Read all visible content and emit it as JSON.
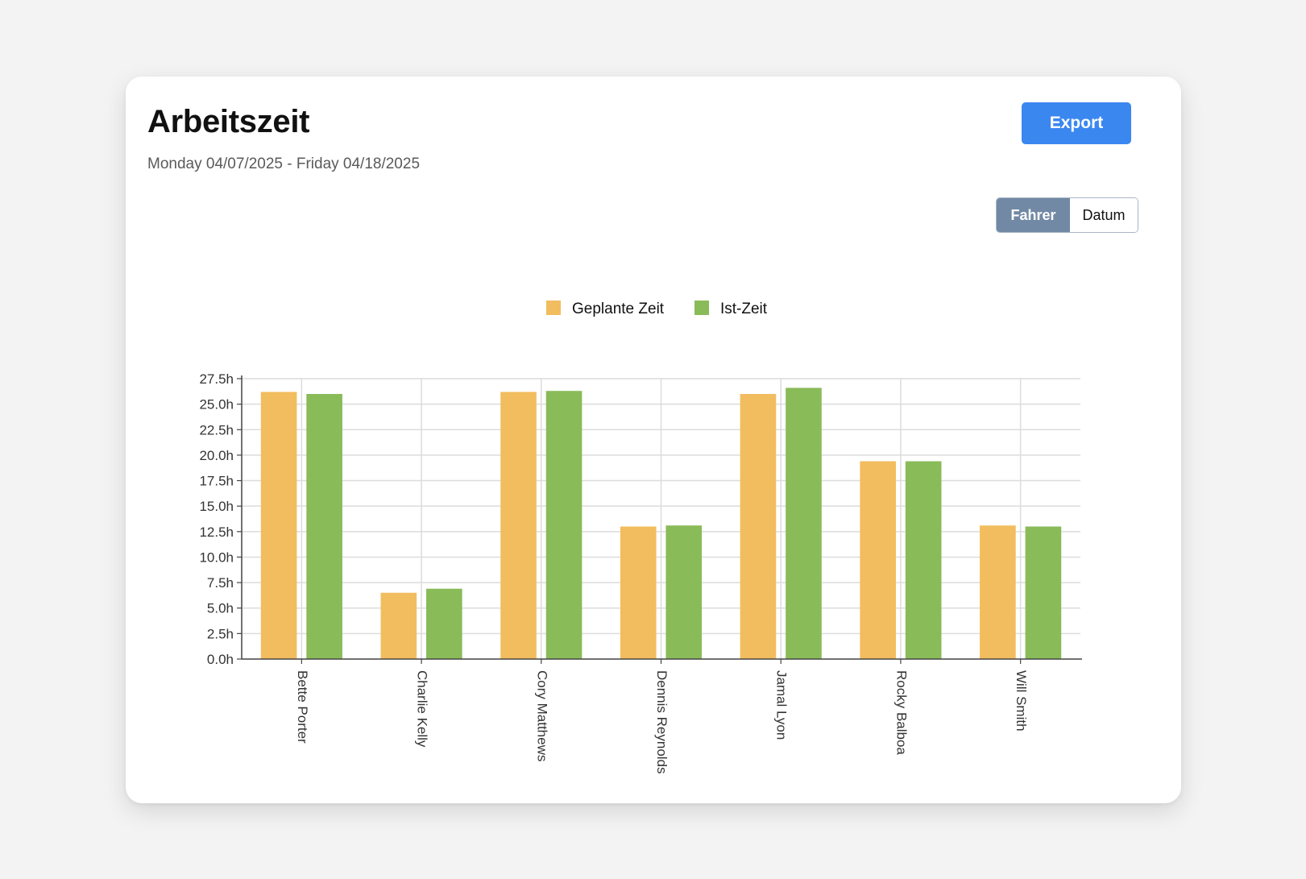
{
  "header": {
    "title": "Arbeitszeit",
    "date_range": "Monday 04/07/2025 - Friday 04/18/2025",
    "export_label": "Export"
  },
  "view_toggle": {
    "options": [
      "Fahrer",
      "Datum"
    ],
    "selected": "Fahrer"
  },
  "colors": {
    "planned": "#f2bd5e",
    "actual": "#89bb59",
    "accent": "#3b87f0",
    "toggle_active": "#7289a5"
  },
  "chart_data": {
    "type": "bar",
    "categories": [
      "Bette Porter",
      "Charlie Kelly",
      "Cory Matthews",
      "Dennis Reynolds",
      "Jamal Lyon",
      "Rocky Balboa",
      "Will Smith"
    ],
    "series": [
      {
        "name": "Geplante Zeit",
        "values": [
          26.2,
          6.5,
          26.2,
          13.0,
          26.0,
          19.4,
          13.1
        ]
      },
      {
        "name": "Ist-Zeit",
        "values": [
          26.0,
          6.9,
          26.3,
          13.1,
          26.6,
          19.4,
          13.0
        ]
      }
    ],
    "yticks": [
      "0.0h",
      "2.5h",
      "5.0h",
      "7.5h",
      "10.0h",
      "12.5h",
      "15.0h",
      "17.5h",
      "20.0h",
      "22.5h",
      "25.0h",
      "27.5h"
    ],
    "ylim": [
      0,
      27.5
    ],
    "y_unit": "h",
    "grid": true,
    "legend_position": "top-center"
  }
}
